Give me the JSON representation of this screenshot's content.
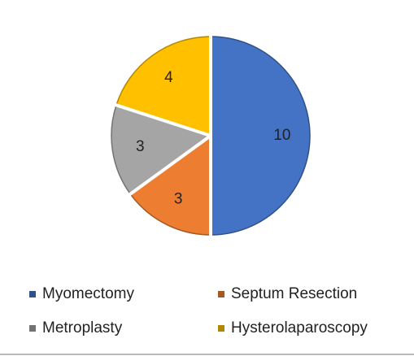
{
  "chart_data": {
    "type": "pie",
    "categories": [
      "Myomectomy",
      "Septum Resection",
      "Metroplasty",
      "Hysterolaparoscopy"
    ],
    "values": [
      10,
      3,
      3,
      4
    ],
    "colors": [
      "#4472c4",
      "#ed7d31",
      "#a5a5a5",
      "#ffc000"
    ],
    "legend": "bottom"
  }
}
